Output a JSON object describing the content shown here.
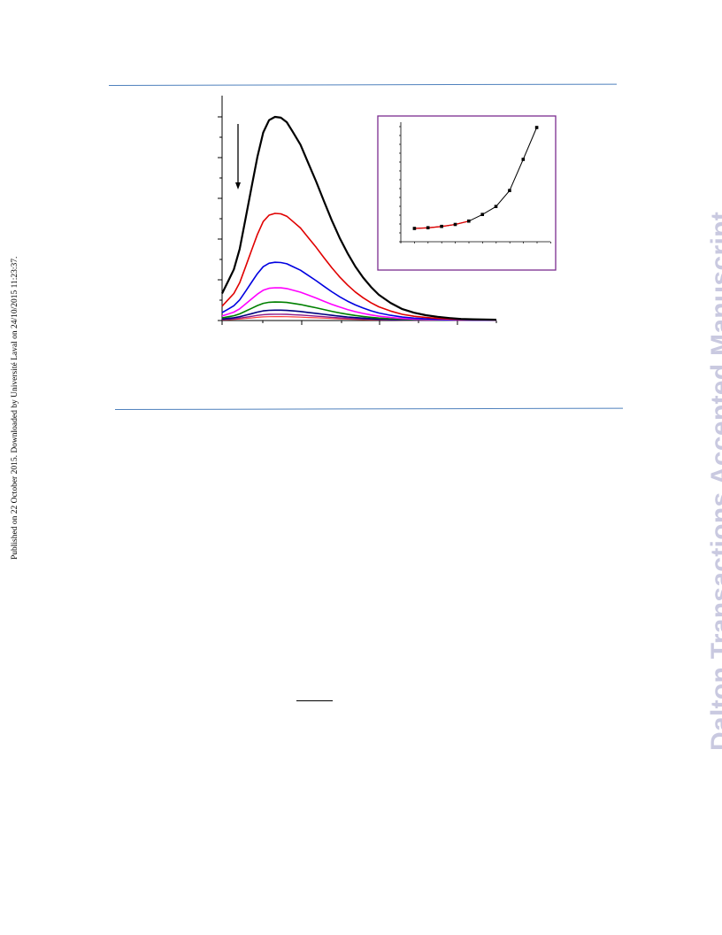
{
  "sidebar": {
    "published_note": "Published on 22 October 2015. Downloaded by Université Laval on 24/10/2015 11:23:37.",
    "watermark": "Dalton Transactions Accepted Manuscript"
  },
  "colors": {
    "rule": "#4f81bd",
    "watermark": "#c9c9e0",
    "inset_border": "#7b2c8f",
    "fit_line": "#e00000"
  },
  "chart_data": [
    {
      "type": "line",
      "name": "main-spectra",
      "arrow": "down",
      "xlim": [
        0,
        7
      ],
      "ylim": [
        0,
        5.5
      ],
      "x": [
        0,
        0.15,
        0.3,
        0.45,
        0.6,
        0.75,
        0.9,
        1.05,
        1.2,
        1.35,
        1.5,
        1.65,
        1.8,
        2.0,
        2.2,
        2.4,
        2.6,
        2.8,
        3.0,
        3.2,
        3.4,
        3.6,
        3.8,
        4.0,
        4.3,
        4.6,
        4.9,
        5.2,
        5.5,
        5.8,
        6.1,
        6.4,
        7.0
      ],
      "series": [
        {
          "color": "#000000",
          "width": 2.2,
          "scale": 1.0
        },
        {
          "color": "#e00000",
          "width": 1.6,
          "scale": 0.525
        },
        {
          "color": "#0000e0",
          "width": 1.6,
          "scale": 0.285
        },
        {
          "color": "#ff00ff",
          "width": 1.6,
          "scale": 0.16
        },
        {
          "color": "#008000",
          "width": 1.6,
          "scale": 0.09
        },
        {
          "color": "#000080",
          "width": 1.6,
          "scale": 0.05
        },
        {
          "color": "#8b1a8b",
          "width": 1.4,
          "scale": 0.03
        },
        {
          "color": "#ff4040",
          "width": 1.2,
          "scale": 0.018
        }
      ],
      "base_profile": [
        0.66,
        0.95,
        1.25,
        1.75,
        2.5,
        3.25,
        4.0,
        4.6,
        4.9,
        4.98,
        4.96,
        4.85,
        4.62,
        4.3,
        3.85,
        3.4,
        2.92,
        2.45,
        2.02,
        1.65,
        1.32,
        1.05,
        0.82,
        0.63,
        0.43,
        0.28,
        0.19,
        0.13,
        0.09,
        0.06,
        0.04,
        0.03,
        0.02
      ]
    },
    {
      "type": "scatter",
      "name": "inset",
      "xlim": [
        0,
        11
      ],
      "ylim": [
        0,
        9
      ],
      "x": [
        1,
        2,
        3,
        4,
        5,
        6,
        7,
        8,
        9,
        10
      ],
      "y": [
        1.0,
        1.05,
        1.15,
        1.3,
        1.55,
        2.05,
        2.65,
        3.85,
        6.2,
        8.6
      ],
      "fit_points": 5
    }
  ]
}
